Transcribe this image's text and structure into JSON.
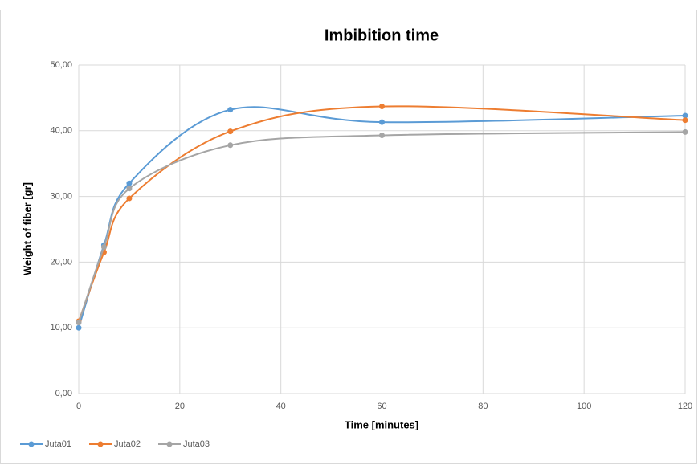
{
  "chart_data": {
    "type": "line",
    "title": "Imbibition time",
    "x_label": "Time [minutes]",
    "y_label": "Weight of fiber [gr]",
    "x": [
      0,
      5,
      10,
      30,
      60,
      120
    ],
    "series": [
      {
        "name": "Juta01",
        "color": "#5b9bd5",
        "values": [
          10.0,
          22.6,
          32.0,
          43.2,
          41.3,
          42.3
        ]
      },
      {
        "name": "Juta02",
        "color": "#ed7d31",
        "values": [
          11.0,
          21.5,
          29.7,
          39.9,
          43.7,
          41.6
        ]
      },
      {
        "name": "Juta03",
        "color": "#a5a5a5",
        "values": [
          10.8,
          22.3,
          31.2,
          37.8,
          39.3,
          39.8
        ]
      }
    ],
    "xlim": [
      0,
      120
    ],
    "xticks": [
      0,
      20,
      40,
      60,
      80,
      100,
      120
    ],
    "ylim": [
      0,
      50
    ],
    "yticks": [
      {
        "value": 0,
        "label": "0,00"
      },
      {
        "value": 10,
        "label": "10,00"
      },
      {
        "value": 20,
        "label": "20,00"
      },
      {
        "value": 30,
        "label": "30,00"
      },
      {
        "value": 40,
        "label": "40,00"
      },
      {
        "value": 50,
        "label": "50,00"
      }
    ],
    "grid": true,
    "smooth": true,
    "legend": "bottom-left"
  }
}
